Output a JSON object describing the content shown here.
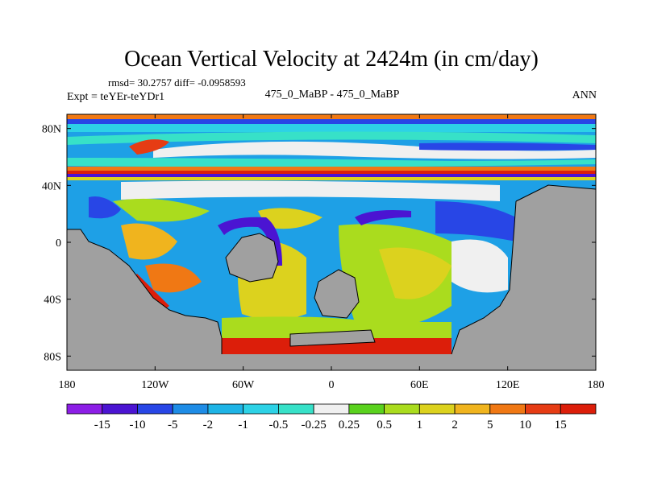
{
  "chart_data": {
    "type": "heatmap",
    "title": "Ocean Vertical Velocity at 2424m (in cm/day)",
    "stats_line": "rmsd= 30.2757 diff= -0.0958593",
    "expt_label": "Expt = teYEr-teYDr1",
    "subtitle": "475_0_MaBP - 475_0_MaBP",
    "season": "ANN",
    "x_ticks": [
      "180",
      "120W",
      "60W",
      "0",
      "60E",
      "120E",
      "180"
    ],
    "x_values": [
      -180,
      -120,
      -60,
      0,
      60,
      120,
      180
    ],
    "y_ticks": [
      "80N",
      "40N",
      "0",
      "40S",
      "80S"
    ],
    "y_values": [
      80,
      40,
      0,
      -40,
      -80
    ],
    "xlim": [
      -180,
      180
    ],
    "ylim": [
      -90,
      90
    ],
    "colorbar": {
      "labels": [
        "-15",
        "-10",
        "-5",
        "-2",
        "-1",
        "-0.5",
        "-0.25",
        "0.25",
        "0.5",
        "1",
        "2",
        "5",
        "10",
        "15"
      ],
      "colors": [
        "#8c1ee6",
        "#4b14d2",
        "#2846e6",
        "#1e8ce6",
        "#1eb4e6",
        "#2dd2e6",
        "#37e1c8",
        "#f0f0f0",
        "#5ad21e",
        "#aadc1e",
        "#dcd21e",
        "#f0b41e",
        "#f07814",
        "#e63c14",
        "#dc1e0a"
      ]
    },
    "land_color": "#a0a0a0"
  }
}
